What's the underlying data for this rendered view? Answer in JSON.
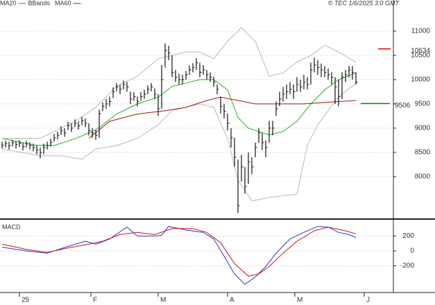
{
  "chart_data": [
    {
      "type": "ohlc",
      "annotation": "© TEC 1/6/2025 3:0 GMT",
      "legend": "top-left",
      "grid": true,
      "bar_color": "#111111",
      "xlim": [
        -0.6,
        112.8
      ],
      "ylim": [
        7140,
        11470
      ],
      "yticks": [
        8000,
        8500,
        9000,
        9500,
        10000,
        10500,
        11000
      ],
      "high": [
        8720,
        8740,
        8720,
        8760,
        8730,
        8750,
        8700,
        8740,
        8710,
        8680,
        8640,
        8600,
        8680,
        8720,
        8780,
        8880,
        8930,
        9040,
        9000,
        9130,
        9100,
        9180,
        9140,
        9230,
        9200,
        9100,
        9000,
        8960,
        9380,
        9530,
        9600,
        9650,
        9840,
        9930,
        9900,
        9980,
        9950,
        9750,
        9740,
        9650,
        9740,
        9790,
        9880,
        9930,
        9820,
        9700,
        10300,
        10750,
        10700,
        10500,
        10200,
        10120,
        10100,
        10180,
        10290,
        10340,
        10440,
        10350,
        10300,
        10200,
        10150,
        10060,
        9900,
        9650,
        9500,
        9300,
        9000,
        8800,
        8350,
        8450,
        8200,
        8500,
        8400,
        8700,
        9000,
        8900,
        8750,
        9150,
        9150,
        9550,
        9750,
        9850,
        9900,
        9950,
        9900,
        10050,
        10000,
        10100,
        10050,
        10350,
        10450,
        10400,
        10330,
        10280,
        10230,
        10150,
        10050,
        10000,
        10150,
        10200,
        10280,
        10280,
        10150
      ],
      "low": [
        8580,
        8600,
        8560,
        8620,
        8580,
        8610,
        8540,
        8600,
        8560,
        8520,
        8460,
        8380,
        8460,
        8560,
        8620,
        8720,
        8770,
        8860,
        8820,
        8960,
        8920,
        9020,
        8970,
        9060,
        9020,
        8850,
        8800,
        8760,
        8800,
        9350,
        9400,
        9450,
        9620,
        9760,
        9700,
        9800,
        9750,
        9500,
        9560,
        9450,
        9560,
        9600,
        9700,
        9760,
        9600,
        9250,
        9400,
        10250,
        10400,
        10050,
        9950,
        9900,
        9900,
        10000,
        10100,
        10150,
        10200,
        10050,
        10100,
        10000,
        9950,
        9850,
        9700,
        9300,
        9200,
        8950,
        8600,
        8200,
        7250,
        7900,
        7650,
        7850,
        8050,
        8400,
        8700,
        8550,
        8400,
        8700,
        8850,
        9250,
        9450,
        9550,
        9600,
        9700,
        9600,
        9750,
        9750,
        9800,
        9800,
        9900,
        10150,
        10100,
        10050,
        10050,
        10000,
        9900,
        9500,
        9450,
        9600,
        9950,
        10050,
        10000,
        9900
      ],
      "close": [
        8650,
        8680,
        8640,
        8700,
        8660,
        8690,
        8620,
        8680,
        8640,
        8600,
        8550,
        8500,
        8600,
        8640,
        8700,
        8800,
        8850,
        8950,
        8900,
        9050,
        9000,
        9100,
        9050,
        9150,
        9100,
        8950,
        8900,
        8850,
        9300,
        9450,
        9500,
        9550,
        9750,
        9850,
        9800,
        9900,
        9850,
        9600,
        9650,
        9550,
        9650,
        9700,
        9800,
        9850,
        9700,
        9400,
        10000,
        10600,
        10550,
        10150,
        10050,
        10000,
        10000,
        10100,
        10200,
        10250,
        10350,
        10150,
        10200,
        10100,
        10050,
        9950,
        9800,
        9450,
        9350,
        9100,
        8800,
        8400,
        7400,
        8200,
        7800,
        8300,
        8200,
        8600,
        8900,
        8700,
        8600,
        9000,
        9000,
        9400,
        9600,
        9700,
        9750,
        9800,
        9750,
        9900,
        9850,
        9950,
        9900,
        10200,
        10300,
        10250,
        10200,
        10150,
        10100,
        10050,
        9850,
        9650,
        10050,
        10100,
        10200,
        10150,
        9950
      ],
      "series": [
        {
          "name": "MA20",
          "color": "#22aa22",
          "label_color": "#2244cc",
          "lines": [
            {
              "x": [
                0,
                9,
                15,
                21,
                27,
                33,
                39,
                45,
                49,
                53,
                57,
                61,
                65,
                68,
                71,
                74,
                77,
                81,
                85,
                89,
                93,
                97,
                102
              ],
              "values": [
                8790,
                8650,
                8640,
                8780,
                8960,
                9290,
                9500,
                9640,
                9860,
                9930,
                10000,
                10000,
                9790,
                9220,
                9000,
                8930,
                8860,
                8930,
                9140,
                9500,
                9790,
                10000,
                10140
              ]
            }
          ]
        },
        {
          "name": "BBands",
          "color": "#b8b8b8",
          "label_color": "#b8b8b8",
          "lines": [
            {
              "x": [
                0,
                11,
                15,
                21,
                27,
                33,
                39,
                45,
                49,
                53,
                57,
                61,
                65,
                69,
                73,
                77,
                81,
                85,
                89,
                93,
                97,
                102
              ],
              "values": [
                8790,
                8790,
                8930,
                9140,
                9430,
                9860,
                10070,
                10430,
                10500,
                10570,
                10570,
                10430,
                10790,
                11070,
                10790,
                10070,
                10140,
                10360,
                10500,
                10710,
                10570,
                10360
              ]
            },
            {
              "x": [
                0,
                11,
                17,
                23,
                27,
                33,
                39,
                45,
                49,
                53,
                57,
                61,
                65,
                68,
                72,
                77,
                85,
                88,
                91,
                94,
                97,
                102
              ],
              "values": [
                8570,
                8430,
                8430,
                8360,
                8570,
                8640,
                8790,
                9070,
                9360,
                9430,
                9500,
                9430,
                8790,
                7930,
                7500,
                7570,
                7640,
                8640,
                9070,
                9360,
                9640,
                9930
              ]
            }
          ]
        },
        {
          "name": "MA60",
          "color": "#aa1111",
          "label_color": "#cc1111",
          "lines": [
            {
              "x": [
                25,
                31,
                39,
                47,
                53,
                59,
                63,
                68,
                73,
                79,
                87,
                93,
                102
              ],
              "values": [
                8790,
                9140,
                9290,
                9360,
                9430,
                9570,
                9640,
                9570,
                9500,
                9500,
                9500,
                9530,
                9570
              ]
            }
          ]
        }
      ],
      "ref_lines": [
        {
          "value": 10634,
          "color": "#dd0000"
        },
        {
          "value": 9506,
          "color": "#008800"
        }
      ]
    },
    {
      "type": "line",
      "title": "MACD",
      "grid": true,
      "xlim": [
        -0.6,
        112.8
      ],
      "ylim": [
        -560,
        410
      ],
      "yticks": [
        -200,
        0,
        200
      ],
      "xticks": [
        {
          "value": 5,
          "label": "25"
        },
        {
          "value": 25.6,
          "label": "F"
        },
        {
          "value": 45,
          "label": "M"
        },
        {
          "value": 65,
          "label": "A"
        },
        {
          "value": 84.4,
          "label": "M"
        },
        {
          "value": 104.4,
          "label": "J"
        }
      ],
      "series": [
        {
          "color": "#2233cc",
          "x": [
            0,
            7,
            13,
            19,
            24,
            27,
            31,
            36,
            39,
            44,
            46,
            48,
            53,
            58,
            61,
            64,
            67,
            70,
            73,
            76,
            79,
            83,
            87,
            91,
            94,
            97,
            100,
            102
          ],
          "values": [
            50,
            0,
            -30,
            60,
            130,
            90,
            160,
            320,
            200,
            200,
            210,
            330,
            280,
            250,
            160,
            -70,
            -310,
            -450,
            -350,
            -210,
            -30,
            160,
            250,
            330,
            320,
            250,
            220,
            180
          ]
        },
        {
          "color": "#cc1111",
          "x": [
            0,
            7,
            13,
            19,
            25,
            29,
            34,
            39,
            44,
            49,
            55,
            59,
            63,
            67,
            71,
            74,
            77,
            81,
            85,
            90,
            94,
            99,
            102
          ],
          "values": [
            90,
            20,
            -20,
            40,
            90,
            130,
            220,
            250,
            220,
            300,
            300,
            250,
            110,
            -170,
            -340,
            -310,
            -210,
            -30,
            130,
            270,
            320,
            270,
            230
          ]
        }
      ]
    }
  ]
}
